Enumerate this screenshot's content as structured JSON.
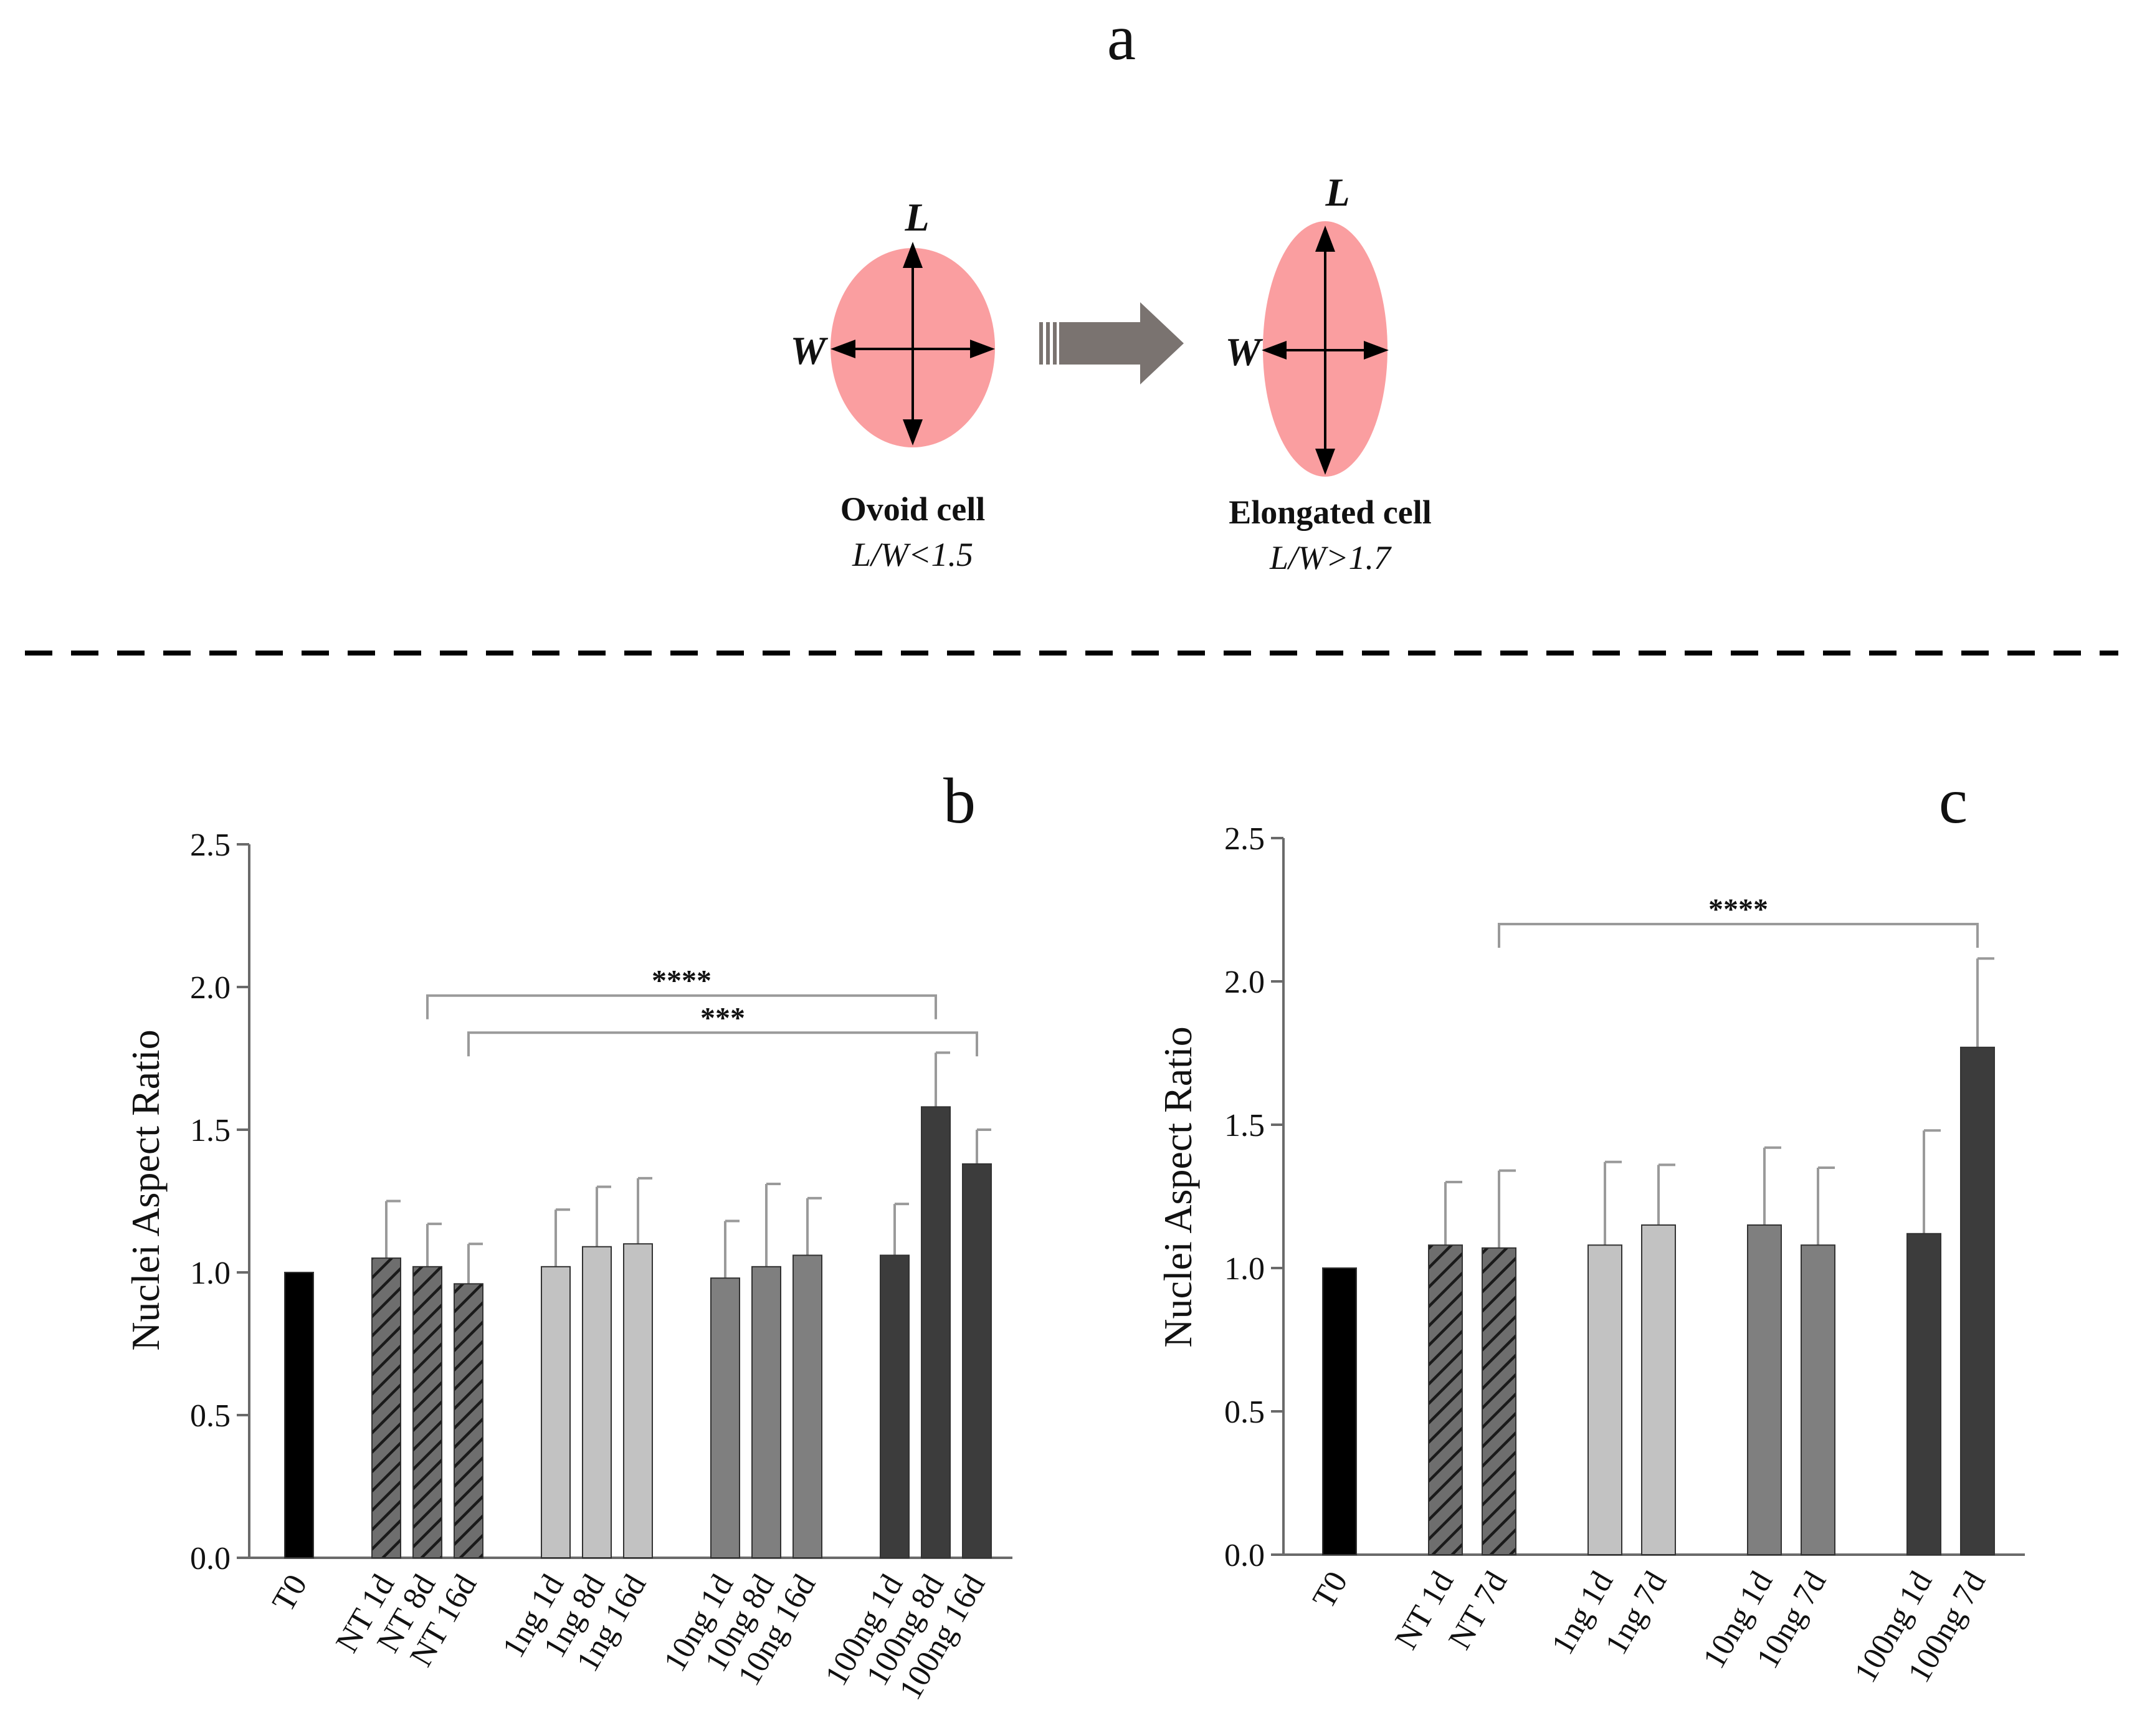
{
  "panel_a": {
    "label": "a",
    "ovoid": {
      "length_label": "L",
      "width_label": "W",
      "name": "Ovoid cell",
      "criterion": "L/W<1.5"
    },
    "elongated": {
      "length_label": "L",
      "width_label": "W",
      "name": "Elongated cell",
      "criterion": "L/W>1.7"
    },
    "colors": {
      "cell_fill": "#fa9ea0",
      "arrow_fill": "#7a7370"
    }
  },
  "chart_data": [
    {
      "id": "b",
      "type": "bar",
      "panel_label": "b",
      "title": "",
      "xlabel": "",
      "ylabel": "Nuclei Aspect Ratio",
      "ylim": [
        0,
        2.5
      ],
      "yticks": [
        "0.0",
        "0.5",
        "1.0",
        "1.5",
        "2.0",
        "2.5"
      ],
      "categories": [
        "T0",
        "NT 1d",
        "NT 8d",
        "NT 16d",
        "1ng 1d",
        "1ng 8d",
        "1ng 16d",
        "10ng 1d",
        "10ng 8d",
        "10ng 16d",
        "100ng 1d",
        "100ng 8d",
        "100ng 16d"
      ],
      "groups": [
        [
          0
        ],
        [
          1,
          2,
          3
        ],
        [
          4,
          5,
          6
        ],
        [
          7,
          8,
          9
        ],
        [
          10,
          11,
          12
        ]
      ],
      "values": [
        1.0,
        1.05,
        1.02,
        0.96,
        1.02,
        1.09,
        1.1,
        0.98,
        1.02,
        1.06,
        1.06,
        1.58,
        1.38
      ],
      "errors": [
        0.0,
        0.2,
        0.15,
        0.14,
        0.2,
        0.21,
        0.23,
        0.2,
        0.29,
        0.2,
        0.18,
        0.19,
        0.12
      ],
      "styles": [
        "black",
        "hatched",
        "hatched",
        "hatched",
        "light",
        "light",
        "light",
        "medium",
        "medium",
        "medium",
        "dark",
        "dark",
        "dark"
      ],
      "significance": [
        {
          "from": 2,
          "to": 11,
          "label": "****",
          "y": 1.97
        },
        {
          "from": 3,
          "to": 12,
          "label": "***",
          "y": 1.84
        }
      ]
    },
    {
      "id": "c",
      "type": "bar",
      "panel_label": "c",
      "title": "",
      "xlabel": "",
      "ylabel": "Nuclei Aspect Ratio",
      "ylim": [
        0,
        2.5
      ],
      "yticks": [
        "0.0",
        "0.5",
        "1.0",
        "1.5",
        "2.0",
        "2.5"
      ],
      "categories": [
        "T0",
        "NT 1d",
        "NT 7d",
        "1ng 1d",
        "1ng 7d",
        "10ng 1d",
        "10ng 7d",
        "100ng 1d",
        "100ng 7d"
      ],
      "groups": [
        [
          0
        ],
        [
          1,
          2
        ],
        [
          3,
          4
        ],
        [
          5,
          6
        ],
        [
          7,
          8
        ]
      ],
      "values": [
        1.0,
        1.08,
        1.07,
        1.08,
        1.15,
        1.15,
        1.08,
        1.12,
        1.77
      ],
      "errors": [
        0.0,
        0.22,
        0.27,
        0.29,
        0.21,
        0.27,
        0.27,
        0.36,
        0.31
      ],
      "styles": [
        "black",
        "hatched",
        "hatched",
        "light",
        "light",
        "medium",
        "medium",
        "dark",
        "dark"
      ],
      "significance": [
        {
          "from": 2,
          "to": 8,
          "label": "****",
          "y": 2.2
        }
      ]
    }
  ],
  "colors": {
    "black": "#000000",
    "hatched": "#6e6e6e",
    "light": "#c2c2c2",
    "medium": "#7f7f7f",
    "dark": "#3c3c3c",
    "axis": "#6a6a6a",
    "error": "#9a9a9a",
    "text": "#111111"
  }
}
